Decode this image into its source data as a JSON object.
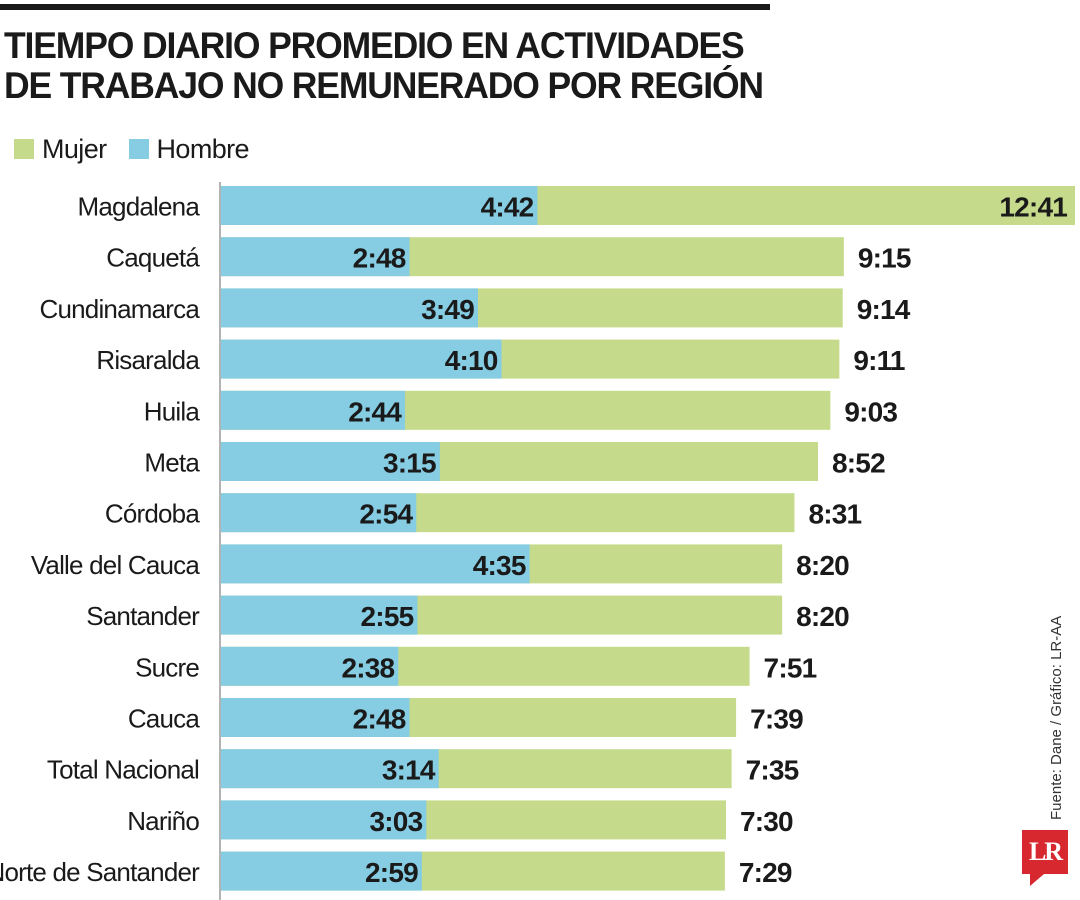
{
  "chart_data": {
    "type": "bar",
    "orientation": "horizontal",
    "title": "TIEMPO DIARIO PROMEDIO EN ACTIVIDADES DE TRABAJO NO REMUNERADO POR REGIÓN",
    "legend_placement": "top-left",
    "grid": false,
    "categories": [
      "Magdalena",
      "Caquetá",
      "Cundinamarca",
      "Risaralda",
      "Huila",
      "Meta",
      "Córdoba",
      "Valle del Cauca",
      "Santander",
      "Sucre",
      "Cauca",
      "Total Nacional",
      "Nariño",
      "Norte de Santander"
    ],
    "series": [
      {
        "name": "Mujer",
        "color": "#c5da8a",
        "labels": [
          "12:41",
          "9:15",
          "9:14",
          "9:11",
          "9:03",
          "8:52",
          "8:31",
          "8:20",
          "8:20",
          "7:51",
          "7:39",
          "7:35",
          "7:30",
          "7:29"
        ],
        "values": [
          761,
          555,
          554,
          551,
          543,
          532,
          511,
          500,
          500,
          471,
          459,
          455,
          450,
          449
        ]
      },
      {
        "name": "Hombre",
        "color": "#86cce3",
        "labels": [
          "4:42",
          "2:48",
          "3:49",
          "4:10",
          "2:44",
          "3:15",
          "2:54",
          "4:35",
          "2:55",
          "2:38",
          "2:48",
          "3:14",
          "3:03",
          "2:59"
        ],
        "values": [
          282,
          168,
          229,
          250,
          164,
          195,
          174,
          275,
          175,
          158,
          168,
          194,
          183,
          179
        ]
      }
    ],
    "value_unit": "minutos"
  },
  "source": "Fuente: Dane / Gráfico: LR-AA",
  "logo_text": "LR"
}
